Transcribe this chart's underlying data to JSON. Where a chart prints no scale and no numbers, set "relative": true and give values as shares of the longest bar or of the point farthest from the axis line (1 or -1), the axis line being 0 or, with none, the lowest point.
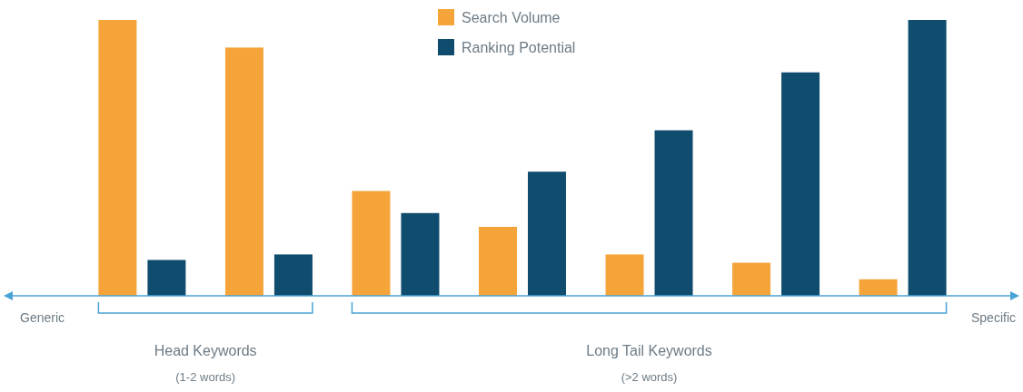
{
  "chart_data": {
    "type": "bar",
    "relative": true,
    "categories": [
      null,
      null,
      null,
      null,
      null,
      null,
      null
    ],
    "series": [
      {
        "name": "Search Volume",
        "color": "#f5a43a",
        "values": [
          1,
          0.9,
          0.38,
          0.25,
          0.15,
          0.12,
          0.06
        ]
      },
      {
        "name": "Ranking Potential",
        "color": "#0f4c6e",
        "values": [
          0.13,
          0.15,
          0.3,
          0.45,
          0.6,
          0.81,
          1
        ]
      }
    ],
    "legend": "top",
    "annotations": [
      "Generic",
      "Specific",
      "Head Keywords",
      "(1-2 words)",
      "Long Tail Keywords",
      "(>2 words)"
    ]
  }
}
